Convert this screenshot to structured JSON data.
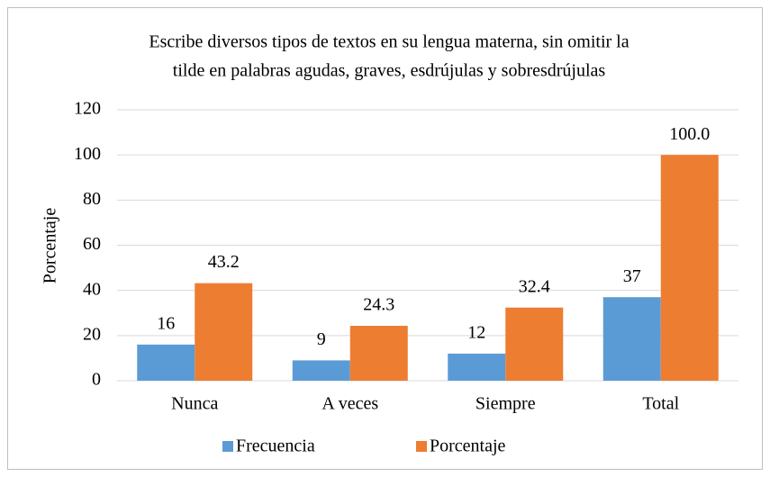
{
  "chart_data": {
    "type": "bar",
    "title": [
      "Escribe diversos tipos de textos en su lengua materna, sin omitir la",
      "tilde en palabras agudas, graves, esdrújulas y sobresdrújulas"
    ],
    "y_label": "Porcentaje",
    "categories": [
      "Nunca",
      "A veces",
      "Siempre",
      "Total"
    ],
    "series": [
      {
        "name": "Frecuencia",
        "color": "#5b9bd5",
        "values": [
          16,
          9,
          12,
          37
        ]
      },
      {
        "name": "Porcentaje",
        "color": "#ed7d31",
        "values": [
          43.2,
          24.3,
          32.4,
          100.0
        ],
        "value_labels": [
          "43.2",
          "24.3",
          "32.4",
          "100.0"
        ]
      }
    ],
    "ylim": [
      0,
      120
    ],
    "yticks": [
      0,
      20,
      40,
      60,
      80,
      100,
      120
    ],
    "grid": true,
    "legend": "bottom"
  }
}
